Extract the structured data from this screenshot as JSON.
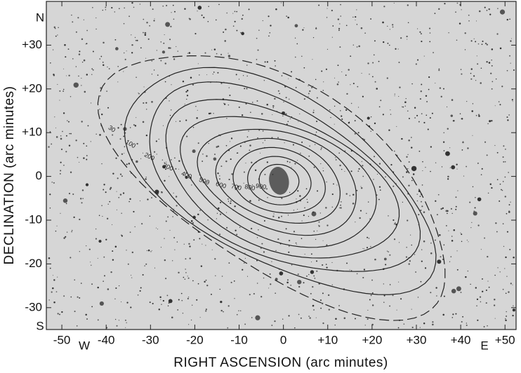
{
  "chart_data": {
    "type": "contour",
    "x_label": "RIGHT ASCENSION (arc minutes)",
    "y_label": "DECLINATION (arc minutes)",
    "xlim": [
      -53.5,
      52.5
    ],
    "ylim": [
      -35,
      40
    ],
    "xticks": [
      -50,
      -40,
      -30,
      -20,
      -10,
      0,
      {
        "value": 10,
        "label": "+10"
      },
      {
        "value": 20,
        "label": "+20"
      },
      {
        "value": 30,
        "label": "+30"
      },
      {
        "value": 40,
        "label": "+40"
      },
      {
        "value": 50,
        "label": "+50"
      }
    ],
    "yticks": [
      -30,
      -20,
      -10,
      0,
      {
        "value": 10,
        "label": "+10"
      },
      {
        "value": 20,
        "label": "+20"
      },
      {
        "value": 30,
        "label": "+30"
      }
    ],
    "directions": {
      "north": "N",
      "south": "S",
      "west": "W",
      "east": "E"
    },
    "levels": [
      30,
      100,
      200,
      300,
      400,
      500,
      600,
      700,
      800,
      900
    ],
    "center": [
      -1,
      -1
    ]
  }
}
